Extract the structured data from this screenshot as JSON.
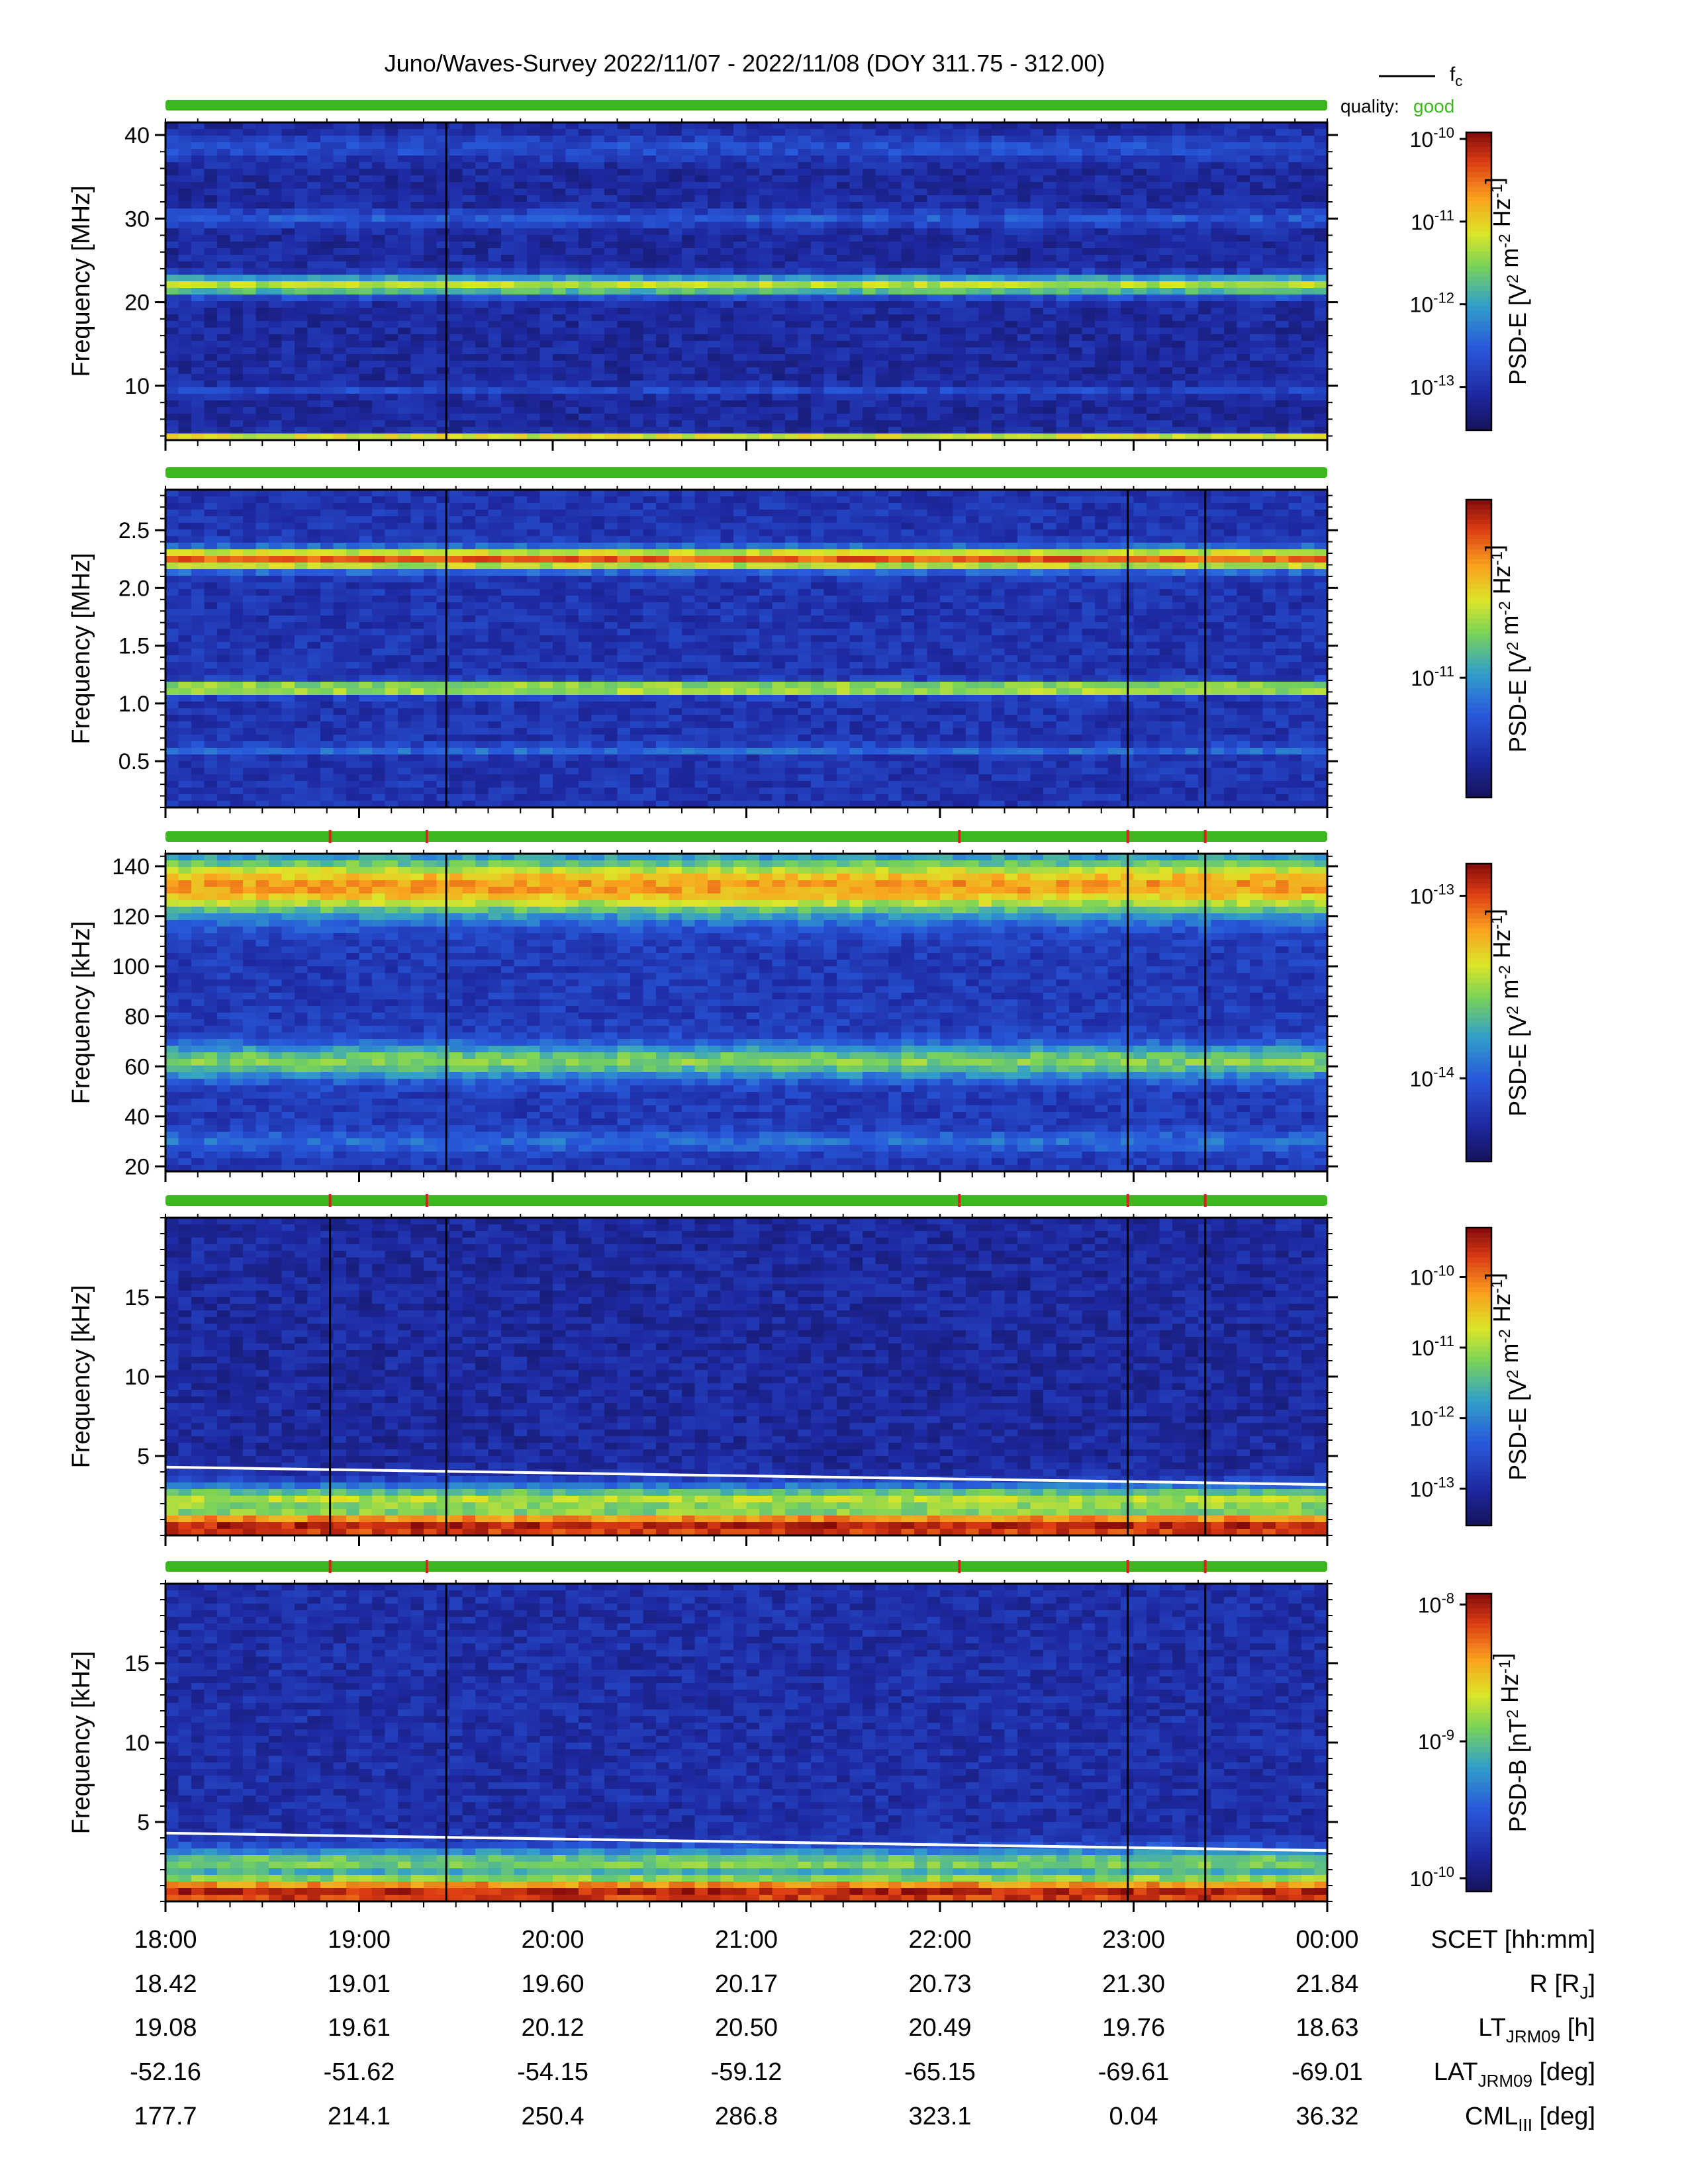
{
  "title": "Juno/Waves-Survey  2022/11/07 - 2022/11/08 (DOY 311.75 - 312.00)",
  "legend": {
    "fc_label": "f",
    "fc_sub": "c",
    "quality_label": "quality:",
    "quality_value": "good",
    "quality_color": "#3cb81e"
  },
  "colors": {
    "quality_good": "#3cb81e",
    "quality_flag": "#e02020",
    "fc_line": "#ffffff",
    "event_line": "#000000"
  },
  "chart_data": [
    {
      "type": "heatmap",
      "ylabel": "Frequency [MHz]",
      "ylim": [
        3.5,
        41.5
      ],
      "yticks": [
        10,
        20,
        30,
        40
      ],
      "ytick_labels": [
        "10",
        "20",
        "30",
        "40"
      ],
      "colorbar": {
        "label": "PSD-E [V^2 m^-2 Hz^-1]",
        "scale": "log",
        "range": [
          3e-14,
          1.2e-10
        ],
        "tick_labels": [
          "10-10",
          "10-11",
          "10-12",
          "10-13"
        ],
        "tick_values": [
          1e-10,
          1e-11,
          1e-12,
          1e-13
        ]
      },
      "bands": [
        {
          "freq": 22.0,
          "width": 1.2,
          "level": 0.62
        },
        {
          "freq": 4.0,
          "width": 0.35,
          "level": 0.7
        },
        {
          "freq": 30.0,
          "width": 1.0,
          "level": 0.27
        },
        {
          "freq": 38.5,
          "width": 1.5,
          "level": 0.24
        },
        {
          "freq": 9.5,
          "width": 0.6,
          "level": 0.22
        }
      ],
      "background_level": 0.12,
      "event_lines_h": [
        19.45
      ],
      "quality_flags_h": [],
      "fc_line": null
    },
    {
      "type": "heatmap",
      "ylabel": "Frequency [MHz]",
      "ylim": [
        0.1,
        2.85
      ],
      "yticks": [
        0.5,
        1.0,
        1.5,
        2.0,
        2.5
      ],
      "ytick_labels": [
        "0.5",
        "1.0",
        "1.5",
        "2.0",
        "2.5"
      ],
      "colorbar": {
        "label": "PSD-E [V^2 m^-2 Hz^-1]",
        "scale": "log",
        "range": [
          3e-12,
          6e-11
        ],
        "tick_labels": [
          "10-11"
        ],
        "tick_values": [
          1e-11
        ]
      },
      "bands": [
        {
          "freq": 2.25,
          "width": 0.09,
          "level": 0.86
        },
        {
          "freq": 1.13,
          "width": 0.05,
          "level": 0.74
        },
        {
          "freq": 0.6,
          "width": 0.04,
          "level": 0.32
        }
      ],
      "background_level": 0.16,
      "event_lines_h": [
        19.45,
        22.97,
        23.37
      ],
      "quality_flags_h": [],
      "fc_line": null
    },
    {
      "type": "heatmap",
      "ylabel": "Frequency [kHz]",
      "ylim": [
        18,
        145
      ],
      "yticks": [
        20,
        40,
        60,
        80,
        100,
        120,
        140
      ],
      "ytick_labels": [
        "20",
        "40",
        "60",
        "80",
        "100",
        "120",
        "140"
      ],
      "colorbar": {
        "label": "PSD-E [V^2 m^-2 Hz^-1]",
        "scale": "log",
        "range": [
          3.5e-15,
          1.5e-13
        ],
        "tick_labels": [
          "10-13",
          "10-14"
        ],
        "tick_values": [
          1e-13,
          1e-14
        ]
      },
      "bands": [
        {
          "freq": 132,
          "width": 12,
          "level": 0.78
        },
        {
          "freq": 62,
          "width": 7,
          "level": 0.55
        },
        {
          "freq": 30,
          "width": 4,
          "level": 0.32
        }
      ],
      "background_level": 0.18,
      "event_lines_h": [
        19.45,
        22.97,
        23.37
      ],
      "quality_flags_h": [
        18.85,
        19.35,
        22.1,
        22.97,
        23.37
      ],
      "fc_line": null
    },
    {
      "type": "heatmap",
      "ylabel": "Frequency [kHz]",
      "ylim": [
        0,
        20
      ],
      "yticks": [
        5,
        10,
        15
      ],
      "ytick_labels": [
        "5",
        "10",
        "15"
      ],
      "colorbar": {
        "label": "PSD-E [V^2 m^-2 Hz^-1]",
        "scale": "log",
        "range": [
          3e-14,
          5e-10
        ],
        "tick_labels": [
          "10-10",
          "10-11",
          "10-12",
          "10-13"
        ],
        "tick_values": [
          1e-10,
          1e-11,
          1e-12,
          1e-13
        ]
      },
      "bands": [
        {
          "freq": 0.5,
          "width": 1.2,
          "level": 0.95
        },
        {
          "freq": 2.2,
          "width": 1.0,
          "level": 0.62
        }
      ],
      "background_level": 0.12,
      "event_lines_h": [
        18.85,
        19.45,
        22.97,
        23.37
      ],
      "quality_flags_h": [
        18.85,
        19.35,
        22.1,
        22.97,
        23.37
      ],
      "fc_line": {
        "start_khz": 4.3,
        "end_khz": 3.2
      }
    },
    {
      "type": "heatmap",
      "ylabel": "Frequency [kHz]",
      "ylim": [
        0,
        20
      ],
      "yticks": [
        5,
        10,
        15
      ],
      "ytick_labels": [
        "5",
        "10",
        "15"
      ],
      "colorbar": {
        "label": "PSD-B [nT^2 Hz^-1]",
        "scale": "log",
        "range": [
          8e-11,
          1.2e-08
        ],
        "tick_labels": [
          "10-8",
          "10-9",
          "10-10"
        ],
        "tick_values": [
          1e-08,
          1e-09,
          1e-10
        ]
      },
      "bands": [
        {
          "freq": 0.5,
          "width": 1.2,
          "level": 0.95
        },
        {
          "freq": 2.4,
          "width": 1.0,
          "level": 0.55
        }
      ],
      "background_level": 0.14,
      "event_lines_h": [
        19.45,
        22.97,
        23.37
      ],
      "quality_flags_h": [
        18.85,
        19.35,
        22.1,
        22.97,
        23.37
      ],
      "fc_line": {
        "start_khz": 4.3,
        "end_khz": 3.2
      }
    }
  ],
  "x_axis": {
    "range_hours": [
      18,
      24
    ]
  },
  "ephemeris": [
    {
      "label": "SCET [hh:mm]",
      "label_main": "SCET [hh:mm]",
      "label_sub": "",
      "label_tail": "",
      "values": [
        "18:00",
        "19:00",
        "20:00",
        "21:00",
        "22:00",
        "23:00",
        "00:00"
      ]
    },
    {
      "label": "R [RJ]",
      "label_main": "R [R",
      "label_sub": "J",
      "label_tail": "]",
      "values": [
        "18.42",
        "19.01",
        "19.60",
        "20.17",
        "20.73",
        "21.30",
        "21.84"
      ]
    },
    {
      "label": "LT JRM09 [h]",
      "label_main": "LT",
      "label_sub": "JRM09",
      "label_tail": " [h]",
      "values": [
        "19.08",
        "19.61",
        "20.12",
        "20.50",
        "20.49",
        "19.76",
        "18.63"
      ]
    },
    {
      "label": "LAT JRM09 [deg]",
      "label_main": "LAT",
      "label_sub": "JRM09",
      "label_tail": " [deg]",
      "values": [
        "-52.16",
        "-51.62",
        "-54.15",
        "-59.12",
        "-65.15",
        "-69.61",
        "-69.01"
      ]
    },
    {
      "label": "CML III [deg]",
      "label_main": "CML",
      "label_sub": "III",
      "label_tail": " [deg]",
      "values": [
        "177.7",
        "214.1",
        "250.4",
        "286.8",
        "323.1",
        "0.04",
        "36.32"
      ]
    }
  ]
}
